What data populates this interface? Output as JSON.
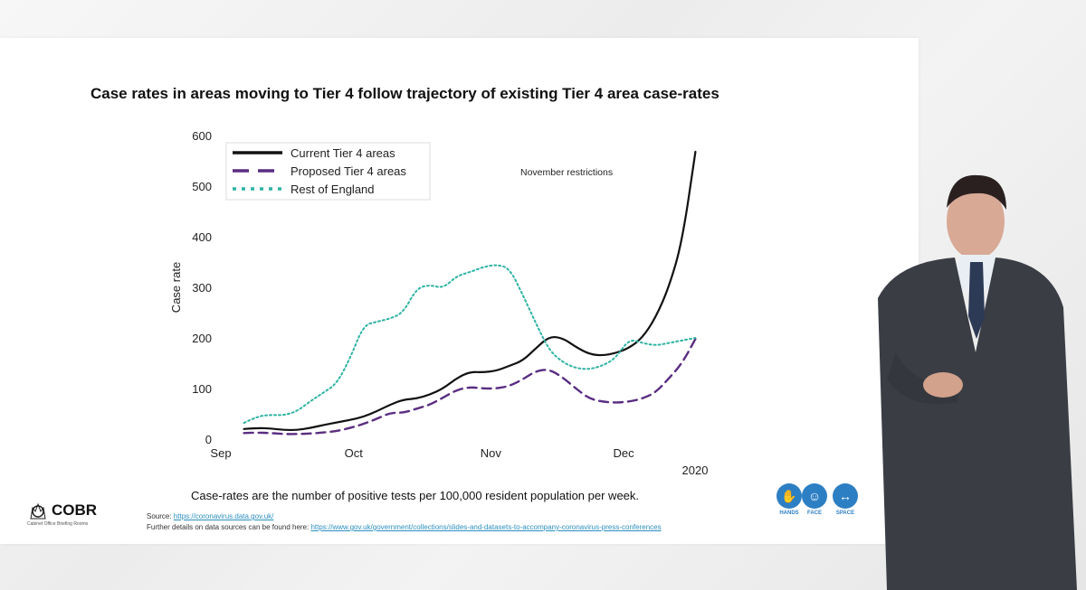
{
  "slide": {
    "title": "Case rates in areas moving to Tier 4 follow trajectory of existing Tier 4 area case-rates",
    "caption": "Case-rates are the number of positive tests per 100,000 resident population per week.",
    "source_label": "Source: ",
    "source_link": "https://coronavirus.data.gov.uk/",
    "further_label": "Further details on data sources can be found here: ",
    "further_link": "https://www.gov.uk/government/collections/slides-and-datasets-to-accompany-coronavirus-press-conferences"
  },
  "branding": {
    "org": "COBR",
    "org_sub": "Cabinet Office Briefing Rooms",
    "crest_icon": "royal-crest-icon"
  },
  "badges": [
    {
      "label": "HANDS",
      "icon": "hands-icon"
    },
    {
      "label": "FACE",
      "icon": "face-mask-icon"
    },
    {
      "label": "SPACE",
      "icon": "space-arrows-icon"
    }
  ],
  "colors": {
    "current": "#111111",
    "proposed": "#5a2d82",
    "rest": "#2fb3a3",
    "badge": "#2d7fc4"
  },
  "chart_data": {
    "type": "line",
    "title": "",
    "xlabel": "",
    "ylabel": "Case rate",
    "ylim": [
      0,
      600
    ],
    "yticks": [
      0,
      100,
      200,
      300,
      400,
      500,
      600
    ],
    "xlim": [
      0,
      110
    ],
    "xticks": [
      {
        "x": 0,
        "label": "Sep"
      },
      {
        "x": 30,
        "label": "Oct"
      },
      {
        "x": 61,
        "label": "Nov"
      },
      {
        "x": 91,
        "label": "Dec"
      }
    ],
    "year_label": "2020",
    "annotation": "November restrictions",
    "legend_position": "top-left",
    "series": [
      {
        "name": "Current Tier 4 areas",
        "style": "solid",
        "x": [
          4,
          7,
          10,
          13,
          16,
          19,
          22,
          25,
          28,
          31,
          34,
          37,
          40,
          43,
          46,
          49,
          52,
          55,
          58,
          61,
          64,
          67,
          70,
          73,
          76,
          79,
          82,
          85,
          88,
          91,
          94,
          97,
          100,
          103,
          106
        ],
        "y": [
          20,
          22,
          21,
          18,
          18,
          22,
          28,
          33,
          38,
          44,
          55,
          68,
          78,
          80,
          88,
          100,
          120,
          133,
          132,
          135,
          145,
          155,
          180,
          203,
          200,
          182,
          168,
          165,
          170,
          180,
          200,
          240,
          300,
          390,
          568
        ]
      },
      {
        "name": "Proposed Tier 4 areas",
        "style": "dashed",
        "x": [
          4,
          7,
          10,
          13,
          16,
          19,
          22,
          25,
          28,
          31,
          34,
          37,
          40,
          43,
          46,
          49,
          52,
          55,
          58,
          61,
          64,
          67,
          70,
          73,
          76,
          79,
          82,
          85,
          88,
          91,
          94,
          97,
          100,
          103,
          106
        ],
        "y": [
          12,
          13,
          12,
          10,
          10,
          11,
          13,
          16,
          22,
          30,
          40,
          52,
          52,
          60,
          68,
          82,
          97,
          103,
          100,
          100,
          105,
          118,
          135,
          138,
          122,
          100,
          80,
          74,
          72,
          74,
          80,
          92,
          120,
          150,
          198
        ]
      },
      {
        "name": "Rest of England",
        "style": "dotted",
        "x": [
          4,
          7,
          10,
          13,
          16,
          19,
          22,
          25,
          28,
          31,
          34,
          37,
          40,
          43,
          46,
          49,
          52,
          55,
          58,
          61,
          64,
          67,
          70,
          73,
          76,
          79,
          82,
          85,
          88,
          91,
          94,
          97,
          100,
          103,
          106
        ],
        "y": [
          32,
          45,
          48,
          47,
          55,
          75,
          92,
          110,
          160,
          225,
          232,
          238,
          250,
          298,
          305,
          298,
          322,
          330,
          340,
          345,
          338,
          285,
          228,
          175,
          152,
          140,
          138,
          145,
          160,
          198,
          190,
          185,
          190,
          195,
          200
        ]
      }
    ]
  }
}
